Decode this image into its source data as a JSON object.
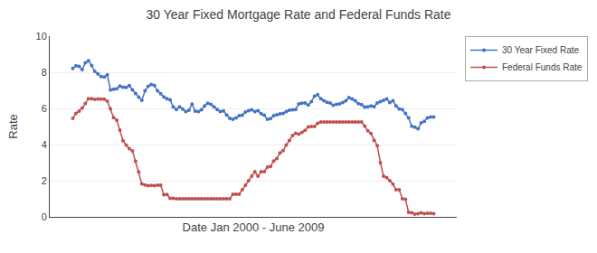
{
  "chart_data": {
    "type": "line",
    "title": "30 Year Fixed Mortgage Rate and Federal Funds Rate",
    "x_label": "Date Jan 2000 - June 2009",
    "y_label": "Rate",
    "categories": [
      null,
      null,
      null,
      null,
      null,
      null,
      null,
      null,
      null,
      null,
      null,
      null,
      null,
      null,
      null,
      null,
      null,
      null,
      null,
      null,
      null,
      null,
      null,
      null,
      null,
      null,
      null,
      null,
      null,
      null,
      null,
      null,
      null,
      null,
      null,
      null,
      null,
      null,
      null,
      null,
      null,
      null,
      null,
      null,
      null,
      null,
      null,
      null,
      null,
      null,
      null,
      null,
      null,
      null,
      null,
      null,
      null,
      null,
      null,
      null,
      null,
      null,
      null,
      null,
      null,
      null,
      null,
      null,
      null,
      null,
      null,
      null,
      null,
      null,
      null,
      null,
      null,
      null,
      null,
      null,
      null,
      null,
      null,
      null,
      null,
      null,
      null,
      null,
      null,
      null,
      null,
      null,
      null,
      null,
      null,
      null,
      null,
      null,
      null,
      null,
      null,
      null,
      null,
      null,
      null,
      null,
      null,
      null,
      null,
      null,
      null,
      null,
      null,
      null,
      null,
      null
    ],
    "series": [
      {
        "name": "30 Year Fixed Rate",
        "color": "#4472C4",
        "values": [
          8.21,
          8.36,
          8.32,
          8.15,
          8.52,
          8.64,
          8.37,
          8.05,
          7.91,
          7.76,
          7.74,
          7.86,
          7.03,
          7.06,
          7.09,
          7.24,
          7.17,
          7.16,
          7.26,
          7.03,
          6.82,
          6.62,
          6.45,
          6.97,
          7.22,
          7.32,
          7.27,
          6.97,
          6.81,
          6.64,
          6.54,
          6.47,
          6.09,
          5.94,
          6.09,
          5.96,
          5.83,
          5.9,
          6.24,
          5.85,
          5.83,
          5.92,
          6.14,
          6.29,
          6.23,
          6.09,
          5.94,
          5.83,
          5.86,
          5.64,
          5.45,
          5.4,
          5.47,
          5.6,
          5.63,
          5.8,
          5.87,
          5.93,
          5.82,
          5.88,
          5.71,
          5.62,
          5.4,
          5.44,
          5.6,
          5.65,
          5.7,
          5.72,
          5.82,
          5.9,
          5.93,
          5.94,
          6.25,
          6.29,
          6.3,
          6.19,
          6.37,
          6.68,
          6.76,
          6.54,
          6.43,
          6.34,
          6.3,
          6.18,
          6.22,
          6.25,
          6.32,
          6.43,
          6.6,
          6.53,
          6.42,
          6.26,
          6.21,
          6.07,
          6.09,
          6.14,
          6.1,
          6.3,
          6.37,
          6.45,
          6.53,
          6.32,
          6.43,
          6.14,
          5.98,
          5.94,
          5.72,
          5.47,
          5.01,
          4.96,
          4.87,
          5.2,
          5.29,
          5.47,
          5.52,
          5.52
        ]
      },
      {
        "name": "Federal Funds Rate",
        "color": "#C0504D",
        "values": [
          5.45,
          5.73,
          5.85,
          6.02,
          6.27,
          6.54,
          6.54,
          6.5,
          6.52,
          6.51,
          6.51,
          6.4,
          5.98,
          5.49,
          5.35,
          4.8,
          4.21,
          3.97,
          3.77,
          3.65,
          3.07,
          2.49,
          1.82,
          1.76,
          1.73,
          1.74,
          1.73,
          1.75,
          1.75,
          1.22,
          1.24,
          1.03,
          1.02,
          1.0,
          1.0,
          1.0,
          1.0,
          1.0,
          1.0,
          1.0,
          1.0,
          1.0,
          1.0,
          1.0,
          1.0,
          1.0,
          1.0,
          1.0,
          1.0,
          1.0,
          1.0,
          1.25,
          1.25,
          1.25,
          1.5,
          1.75,
          2.0,
          2.25,
          2.5,
          2.25,
          2.5,
          2.5,
          2.75,
          2.79,
          3.09,
          3.22,
          3.54,
          3.66,
          3.98,
          4.22,
          4.5,
          4.63,
          4.57,
          4.67,
          4.79,
          4.97,
          5.0,
          5.0,
          5.17,
          5.25,
          5.25,
          5.25,
          5.25,
          5.25,
          5.25,
          5.25,
          5.25,
          5.25,
          5.25,
          5.25,
          5.25,
          5.25,
          5.25,
          5.02,
          4.76,
          4.61,
          4.24,
          3.94,
          3.0,
          2.25,
          2.18,
          2.0,
          1.81,
          1.5,
          1.5,
          1.0,
          0.97,
          0.25,
          0.22,
          0.15,
          0.18,
          0.22,
          0.18,
          0.2,
          0.2,
          0.18
        ]
      }
    ],
    "ylim": [
      0,
      10
    ],
    "yticks": [
      0,
      2,
      4,
      6,
      8,
      10
    ],
    "grid": true,
    "legend": "upper right",
    "marker": "circle",
    "tick_labels": "y"
  }
}
